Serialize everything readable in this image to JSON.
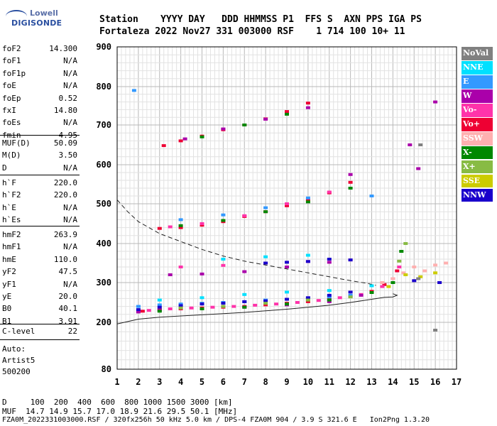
{
  "logo": {
    "line1": "Lowell",
    "line2": "DIGISONDE"
  },
  "header": {
    "line1": "Station    YYYY DAY   DDD HHMMSS P1  FFS S  AXN PPS IGA PS",
    "line2": "Fortaleza 2022 Nov27 331 003000 RSF    1 714 100 10+ 11"
  },
  "params": {
    "group1": [
      {
        "label": "foF2",
        "value": "14.300"
      },
      {
        "label": "foF1",
        "value": "N/A"
      },
      {
        "label": "foF1p",
        "value": "N/A"
      },
      {
        "label": "foE",
        "value": "N/A"
      },
      {
        "label": "foEp",
        "value": "0.52"
      },
      {
        "label": "fxI",
        "value": "14.80"
      },
      {
        "label": "foEs",
        "value": "N/A"
      },
      {
        "label": "fmin",
        "value": "4.95"
      }
    ],
    "group2": [
      {
        "label": "MUF(D)",
        "value": "50.09"
      },
      {
        "label": "M(D)",
        "value": "3.50"
      },
      {
        "label": "D",
        "value": "N/A"
      }
    ],
    "group3": [
      {
        "label": "h`F",
        "value": "220.0"
      },
      {
        "label": "h`F2",
        "value": "220.0"
      },
      {
        "label": "h`E",
        "value": "N/A"
      },
      {
        "label": "h`Es",
        "value": "N/A"
      }
    ],
    "group4": [
      {
        "label": "hmF2",
        "value": "263.9"
      },
      {
        "label": "hmF1",
        "value": "N/A"
      },
      {
        "label": "hmE",
        "value": "110.0"
      },
      {
        "label": "yF2",
        "value": "47.5"
      },
      {
        "label": "yF1",
        "value": "N/A"
      },
      {
        "label": "yE",
        "value": "20.0"
      },
      {
        "label": "B0",
        "value": "40.1"
      },
      {
        "label": "B1",
        "value": "3.91"
      }
    ],
    "clevel": {
      "label": "C-level",
      "value": "22"
    },
    "auto": [
      "Auto:",
      "Artist5",
      "500200"
    ]
  },
  "legend": [
    {
      "name": "NoVal",
      "color": "#808080"
    },
    {
      "name": "NNE",
      "color": "#00e0ff"
    },
    {
      "name": "E",
      "color": "#3399ff"
    },
    {
      "name": "W",
      "color": "#aa00aa"
    },
    {
      "name": "Vo-",
      "color": "#ff33aa"
    },
    {
      "name": "Vo+",
      "color": "#ee0033"
    },
    {
      "name": "SSW",
      "color": "#ffb0b0"
    },
    {
      "name": "X-",
      "color": "#008800"
    },
    {
      "name": "X+",
      "color": "#88bb44"
    },
    {
      "name": "SSE",
      "color": "#cccc00"
    },
    {
      "name": "NNW",
      "color": "#1a00cc"
    }
  ],
  "footer": {
    "line1": "D     100  200  400  600  800 1000 1500 3000 [km]",
    "line2": "MUF  14.7 14.9 15.7 17.0 18.9 21.6 29.5 50.1 [MHz]",
    "line3": "FZA0M_2022331003000.RSF / 320fx256h 50 kHz 5.0 km / DPS-4 FZA0M 904 / 3.9 S 321.6 E   Ion2Png 1.3.20"
  },
  "chart_data": {
    "type": "scatter",
    "xlim": [
      1,
      17
    ],
    "ylim": [
      80,
      900
    ],
    "xticks": [
      1,
      2,
      3,
      4,
      5,
      6,
      7,
      8,
      9,
      10,
      11,
      12,
      13,
      14,
      15,
      16,
      17
    ],
    "yticks": [
      80,
      200,
      300,
      400,
      500,
      600,
      700,
      800,
      900
    ],
    "grid": true,
    "series": [
      {
        "name": "Vo+",
        "color": "#ee0033",
        "points": [
          [
            2.2,
            228
          ],
          [
            3,
            232
          ],
          [
            4,
            234
          ],
          [
            5,
            236
          ],
          [
            6,
            238
          ],
          [
            7,
            240
          ],
          [
            8,
            244
          ],
          [
            9,
            248
          ],
          [
            10,
            252
          ],
          [
            11,
            258
          ],
          [
            12,
            265
          ],
          [
            13,
            278
          ],
          [
            13.6,
            295
          ],
          [
            14.2,
            330
          ],
          [
            3,
            438
          ],
          [
            4,
            440
          ],
          [
            5,
            446
          ],
          [
            6,
            455
          ],
          [
            7,
            468
          ],
          [
            8,
            480
          ],
          [
            9,
            495
          ],
          [
            10,
            510
          ],
          [
            11,
            528
          ],
          [
            12,
            555
          ],
          [
            3.2,
            648
          ],
          [
            4,
            660
          ],
          [
            5,
            672
          ],
          [
            6,
            688
          ],
          [
            7,
            700
          ],
          [
            8,
            716
          ],
          [
            9,
            735
          ],
          [
            10,
            757
          ]
        ]
      },
      {
        "name": "Vo-",
        "color": "#ff33aa",
        "points": [
          [
            2.5,
            230
          ],
          [
            3.5,
            234
          ],
          [
            4.5,
            236
          ],
          [
            5.5,
            238
          ],
          [
            6.5,
            240
          ],
          [
            7.5,
            243
          ],
          [
            8.5,
            246
          ],
          [
            9.5,
            250
          ],
          [
            10.5,
            255
          ],
          [
            11.5,
            262
          ],
          [
            12.5,
            270
          ],
          [
            13.5,
            290
          ],
          [
            14.3,
            340
          ],
          [
            3.5,
            442
          ],
          [
            5,
            450
          ],
          [
            7,
            470
          ],
          [
            9,
            500
          ],
          [
            11,
            530
          ],
          [
            4,
            340
          ],
          [
            6,
            344
          ],
          [
            8,
            350
          ],
          [
            10,
            354
          ],
          [
            12,
            358
          ]
        ]
      },
      {
        "name": "W",
        "color": "#aa00aa",
        "points": [
          [
            2,
            226
          ],
          [
            3,
            230
          ],
          [
            5,
            234
          ],
          [
            7,
            238
          ],
          [
            9,
            244
          ],
          [
            11,
            252
          ],
          [
            12.5,
            268
          ],
          [
            14,
            310
          ],
          [
            3.5,
            320
          ],
          [
            5,
            322
          ],
          [
            7,
            328
          ],
          [
            9,
            340
          ],
          [
            11,
            352
          ],
          [
            4.2,
            665
          ],
          [
            6,
            690
          ],
          [
            8,
            715
          ],
          [
            10,
            745
          ],
          [
            12,
            575
          ],
          [
            15.2,
            590
          ],
          [
            16,
            760
          ],
          [
            14.8,
            650
          ]
        ]
      },
      {
        "name": "E",
        "color": "#3399ff",
        "points": [
          [
            2,
            240
          ],
          [
            3,
            244
          ],
          [
            4,
            246
          ],
          [
            5,
            248
          ],
          [
            6,
            250
          ],
          [
            7,
            252
          ],
          [
            8,
            256
          ],
          [
            9,
            258
          ],
          [
            10,
            260
          ],
          [
            11,
            264
          ],
          [
            12,
            268
          ],
          [
            2,
            240
          ],
          [
            4,
            460
          ],
          [
            6,
            472
          ],
          [
            8,
            490
          ],
          [
            10,
            515
          ],
          [
            13,
            520
          ],
          [
            1.8,
            790
          ]
        ]
      },
      {
        "name": "NNE",
        "color": "#00e0ff",
        "points": [
          [
            3,
            256
          ],
          [
            5,
            262
          ],
          [
            7,
            270
          ],
          [
            9,
            276
          ],
          [
            11,
            280
          ],
          [
            13,
            292
          ],
          [
            6,
            360
          ],
          [
            8,
            366
          ],
          [
            10,
            370
          ]
        ]
      },
      {
        "name": "NNW",
        "color": "#1a00cc",
        "points": [
          [
            2,
            232
          ],
          [
            3,
            238
          ],
          [
            4,
            242
          ],
          [
            5,
            246
          ],
          [
            6,
            248
          ],
          [
            7,
            252
          ],
          [
            8,
            254
          ],
          [
            9,
            258
          ],
          [
            10,
            262
          ],
          [
            11,
            268
          ],
          [
            12,
            276
          ],
          [
            8,
            350
          ],
          [
            9,
            352
          ],
          [
            10,
            354
          ],
          [
            11,
            360
          ],
          [
            12,
            358
          ],
          [
            15,
            305
          ],
          [
            16.2,
            300
          ]
        ]
      },
      {
        "name": "X-",
        "color": "#008800",
        "points": [
          [
            3,
            228
          ],
          [
            5,
            234
          ],
          [
            7,
            238
          ],
          [
            9,
            246
          ],
          [
            11,
            256
          ],
          [
            13,
            275
          ],
          [
            14,
            300
          ],
          [
            14.4,
            380
          ],
          [
            4,
            445
          ],
          [
            6,
            458
          ],
          [
            8,
            480
          ],
          [
            10,
            505
          ],
          [
            12,
            540
          ],
          [
            5,
            670
          ],
          [
            7,
            700
          ],
          [
            9,
            728
          ]
        ]
      },
      {
        "name": "X+",
        "color": "#88bb44",
        "points": [
          [
            4,
            236
          ],
          [
            6,
            240
          ],
          [
            8,
            248
          ],
          [
            10,
            256
          ],
          [
            12,
            264
          ],
          [
            14.3,
            355
          ],
          [
            14.6,
            400
          ]
        ]
      },
      {
        "name": "SSW",
        "color": "#ffb0b0",
        "points": [
          [
            13.5,
            300
          ],
          [
            14,
            310
          ],
          [
            14.5,
            325
          ],
          [
            15,
            340
          ],
          [
            15.5,
            330
          ],
          [
            16,
            345
          ],
          [
            16.5,
            350
          ]
        ]
      },
      {
        "name": "SSE",
        "color": "#cccc00",
        "points": [
          [
            13.8,
            290
          ],
          [
            14.6,
            320
          ],
          [
            15.3,
            315
          ],
          [
            16,
            325
          ]
        ]
      },
      {
        "name": "NoVal",
        "color": "#808080",
        "points": [
          [
            15.3,
            650
          ],
          [
            15.2,
            310
          ],
          [
            16,
            180
          ]
        ]
      }
    ],
    "curves": [
      {
        "name": "profile",
        "style": "solid",
        "x": [
          1,
          2,
          3,
          4,
          5,
          6,
          7,
          8,
          9,
          10,
          11,
          12,
          13,
          13.6,
          14,
          14.2,
          14.0
        ],
        "y": [
          196,
          208,
          213,
          216,
          219,
          222,
          225,
          229,
          233,
          238,
          243,
          250,
          258,
          263,
          263.9,
          268,
          272
        ]
      },
      {
        "name": "muf-d",
        "style": "dashed",
        "x": [
          1,
          1.5,
          2,
          3,
          4,
          5,
          6,
          7,
          8,
          9,
          10,
          11,
          12,
          12.8,
          13.2
        ],
        "y": [
          510,
          480,
          455,
          425,
          405,
          385,
          368,
          355,
          345,
          335,
          325,
          315,
          305,
          298,
          293
        ]
      }
    ]
  }
}
